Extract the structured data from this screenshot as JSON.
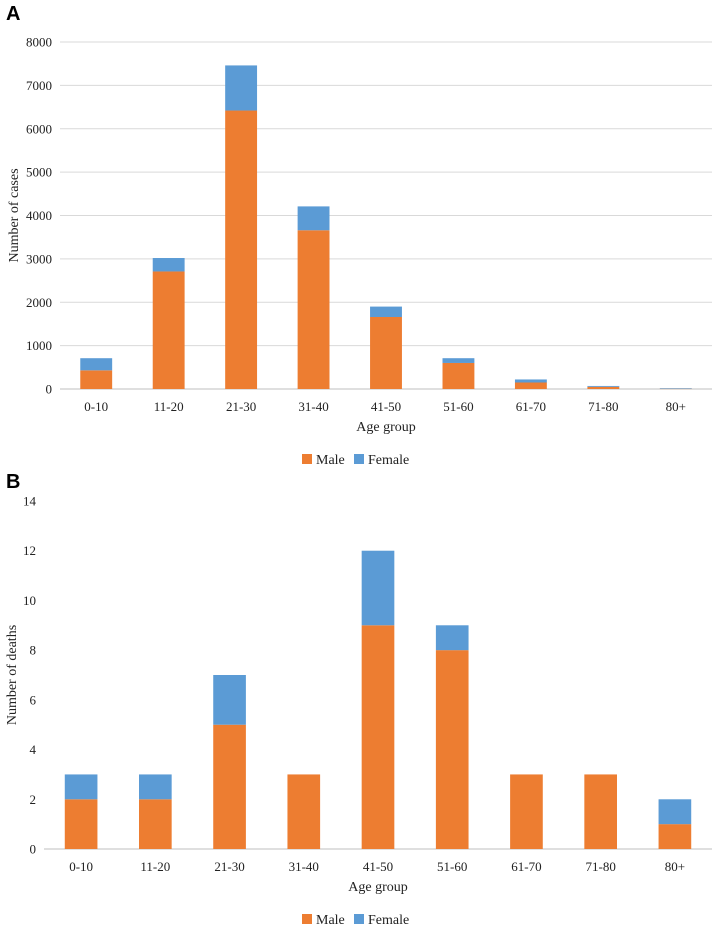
{
  "chart_data": [
    {
      "panel": "A",
      "type": "bar",
      "stacked": true,
      "title": "",
      "xlabel": "Age group",
      "ylabel": "Number of cases",
      "ylim": [
        0,
        8000
      ],
      "yticks": [
        0,
        1000,
        2000,
        3000,
        4000,
        5000,
        6000,
        7000,
        8000
      ],
      "grid": true,
      "legend_position": "bottom-center",
      "categories": [
        "0-10",
        "11-20",
        "21-30",
        "31-40",
        "41-50",
        "51-60",
        "61-70",
        "71-80",
        "80+"
      ],
      "series": [
        {
          "name": "Male",
          "color": "#ed7d31",
          "values": [
            430,
            2710,
            6420,
            3660,
            1660,
            600,
            150,
            50,
            12
          ]
        },
        {
          "name": "Female",
          "color": "#5b9bd5",
          "values": [
            280,
            310,
            1040,
            550,
            240,
            110,
            70,
            20,
            5
          ]
        }
      ]
    },
    {
      "panel": "B",
      "type": "bar",
      "stacked": true,
      "title": "",
      "xlabel": "Age group",
      "ylabel": "Number of deaths",
      "ylim": [
        0,
        14
      ],
      "yticks": [
        0,
        2,
        4,
        6,
        8,
        10,
        12,
        14
      ],
      "grid": false,
      "legend_position": "bottom-center",
      "categories": [
        "0-10",
        "11-20",
        "21-30",
        "31-40",
        "41-50",
        "51-60",
        "61-70",
        "71-80",
        "80+"
      ],
      "series": [
        {
          "name": "Male",
          "color": "#ed7d31",
          "values": [
            2,
            2,
            5,
            3,
            9,
            8,
            3,
            3,
            1
          ]
        },
        {
          "name": "Female",
          "color": "#5b9bd5",
          "values": [
            1,
            1,
            2,
            0,
            3,
            1,
            0,
            0,
            1
          ]
        }
      ]
    }
  ]
}
